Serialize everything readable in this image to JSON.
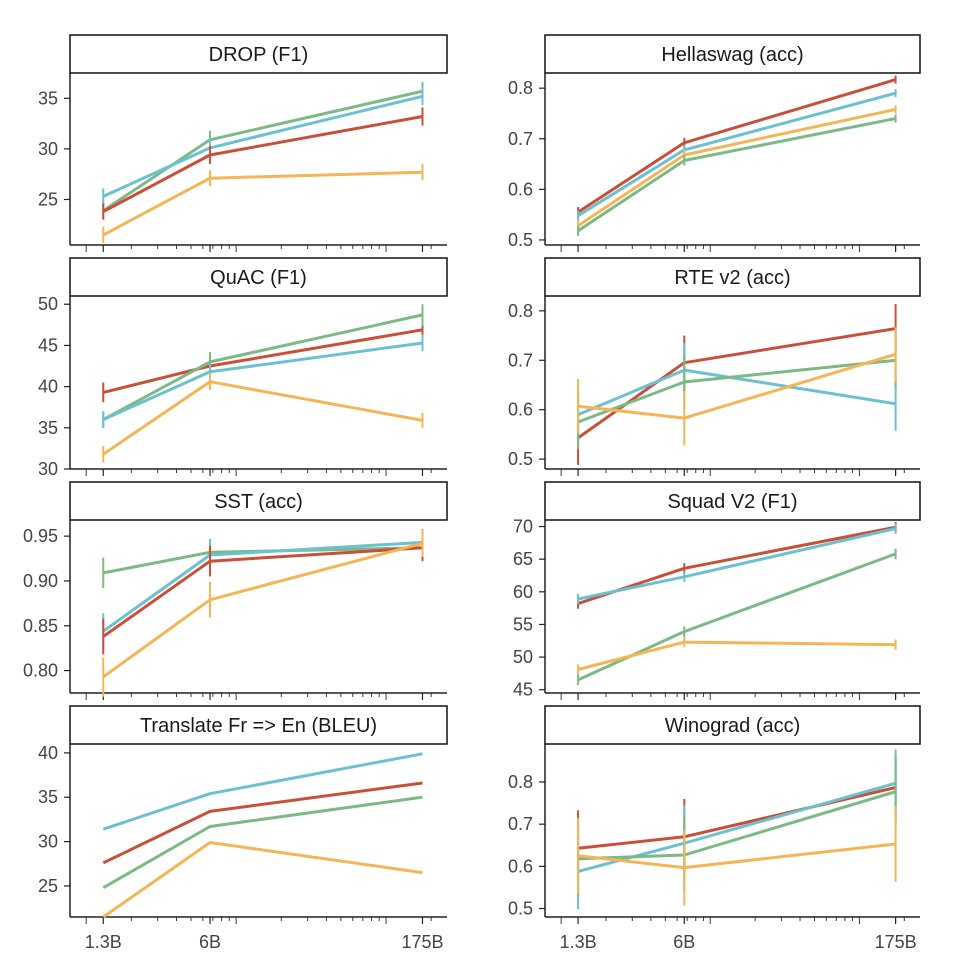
{
  "colors": {
    "red": "#c8503a",
    "teal": "#6cc0d0",
    "green": "#7bba84",
    "orange": "#f4b557"
  },
  "x_tick_labels": [
    "1.3B",
    "6B",
    "175B"
  ],
  "chart_data": [
    {
      "type": "line",
      "title": "DROP (F1)",
      "x": [
        "1.3B",
        "6B",
        "175B"
      ],
      "ylim": [
        20.5,
        37.5
      ],
      "yticks": [
        25,
        30,
        35
      ],
      "error_bars": true,
      "series": [
        {
          "color": "green",
          "values": [
            23.9,
            30.9,
            35.7
          ],
          "err": [
            0.8,
            0.9,
            0.9
          ]
        },
        {
          "color": "teal",
          "values": [
            25.3,
            30.1,
            35.2
          ],
          "err": [
            0.8,
            0.9,
            0.9
          ]
        },
        {
          "color": "red",
          "values": [
            23.8,
            29.4,
            33.2
          ],
          "err": [
            0.8,
            0.9,
            0.9
          ]
        },
        {
          "color": "orange",
          "values": [
            21.5,
            27.1,
            27.7
          ],
          "err": [
            0.8,
            0.8,
            0.8
          ]
        }
      ]
    },
    {
      "type": "line",
      "title": "Hellaswag (acc)",
      "x": [
        "1.3B",
        "6B",
        "175B"
      ],
      "ylim": [
        0.49,
        0.83
      ],
      "yticks": [
        0.5,
        0.6,
        0.7,
        0.8
      ],
      "error_bars": true,
      "series": [
        {
          "color": "red",
          "values": [
            0.555,
            0.692,
            0.817
          ],
          "err": [
            0.01,
            0.01,
            0.008
          ]
        },
        {
          "color": "teal",
          "values": [
            0.548,
            0.678,
            0.79
          ],
          "err": [
            0.01,
            0.01,
            0.008
          ]
        },
        {
          "color": "orange",
          "values": [
            0.528,
            0.668,
            0.758
          ],
          "err": [
            0.01,
            0.01,
            0.008
          ]
        },
        {
          "color": "green",
          "values": [
            0.518,
            0.657,
            0.74
          ],
          "err": [
            0.01,
            0.01,
            0.008
          ]
        }
      ]
    },
    {
      "type": "line",
      "title": "QuAC (F1)",
      "x": [
        "1.3B",
        "6B",
        "175B"
      ],
      "ylim": [
        30,
        51
      ],
      "yticks": [
        30,
        35,
        40,
        45,
        50
      ],
      "error_bars": true,
      "series": [
        {
          "color": "red",
          "values": [
            39.3,
            42.5,
            46.9
          ],
          "err": [
            1.2,
            1.0,
            1.0
          ]
        },
        {
          "color": "green",
          "values": [
            36.0,
            43.0,
            48.7
          ],
          "err": [
            1.0,
            1.2,
            1.3
          ]
        },
        {
          "color": "teal",
          "values": [
            36.0,
            41.8,
            45.3
          ],
          "err": [
            1.0,
            1.0,
            1.0
          ]
        },
        {
          "color": "orange",
          "values": [
            31.8,
            40.6,
            35.9
          ],
          "err": [
            1.0,
            1.0,
            0.9
          ]
        }
      ]
    },
    {
      "type": "line",
      "title": "RTE v2 (acc)",
      "x": [
        "1.3B",
        "6B",
        "175B"
      ],
      "ylim": [
        0.48,
        0.83
      ],
      "yticks": [
        0.5,
        0.6,
        0.7,
        0.8
      ],
      "error_bars": true,
      "series": [
        {
          "color": "red",
          "values": [
            0.543,
            0.695,
            0.764
          ],
          "err": [
            0.055,
            0.055,
            0.05
          ]
        },
        {
          "color": "teal",
          "values": [
            0.59,
            0.68,
            0.612
          ],
          "err": [
            0.055,
            0.055,
            0.055
          ]
        },
        {
          "color": "green",
          "values": [
            0.575,
            0.656,
            0.7
          ],
          "err": [
            0.055,
            0.055,
            0.055
          ]
        },
        {
          "color": "orange",
          "values": [
            0.607,
            0.583,
            0.712
          ],
          "err": [
            0.055,
            0.055,
            0.055
          ]
        }
      ]
    },
    {
      "type": "line",
      "title": "SST (acc)",
      "x": [
        "1.3B",
        "6B",
        "175B"
      ],
      "ylim": [
        0.775,
        0.968
      ],
      "yticks": [
        0.8,
        0.85,
        0.9,
        0.95
      ],
      "yticklabels": [
        "0.80",
        "0.85",
        "0.90",
        "0.95"
      ],
      "error_bars": true,
      "series": [
        {
          "color": "green",
          "values": [
            0.909,
            0.932,
            0.937
          ],
          "err": [
            0.017,
            0.015,
            0.013
          ]
        },
        {
          "color": "teal",
          "values": [
            0.844,
            0.929,
            0.943
          ],
          "err": [
            0.02,
            0.017,
            0.015
          ]
        },
        {
          "color": "red",
          "values": [
            0.838,
            0.922,
            0.937
          ],
          "err": [
            0.02,
            0.017,
            0.015
          ]
        },
        {
          "color": "orange",
          "values": [
            0.793,
            0.879,
            0.942
          ],
          "err": [
            0.022,
            0.02,
            0.015
          ]
        }
      ]
    },
    {
      "type": "line",
      "title": "Squad V2 (F1)",
      "x": [
        "1.3B",
        "6B",
        "175B"
      ],
      "ylim": [
        44.5,
        71
      ],
      "yticks": [
        45,
        50,
        55,
        60,
        65,
        70
      ],
      "error_bars": true,
      "series": [
        {
          "color": "red",
          "values": [
            58.2,
            63.6,
            69.9
          ],
          "err": [
            0.8,
            0.8,
            0.8
          ]
        },
        {
          "color": "teal",
          "values": [
            58.9,
            62.3,
            69.7
          ],
          "err": [
            0.8,
            0.8,
            0.8
          ]
        },
        {
          "color": "green",
          "values": [
            46.5,
            53.9,
            65.8
          ],
          "err": [
            0.8,
            0.8,
            0.8
          ]
        },
        {
          "color": "orange",
          "values": [
            48.1,
            52.3,
            51.9
          ],
          "err": [
            0.8,
            0.8,
            0.8
          ]
        }
      ]
    },
    {
      "type": "line",
      "title": "Translate Fr => En (BLEU)",
      "x": [
        "1.3B",
        "6B",
        "175B"
      ],
      "ylim": [
        21.5,
        41
      ],
      "yticks": [
        25,
        30,
        35,
        40
      ],
      "error_bars": false,
      "series": [
        {
          "color": "teal",
          "values": [
            31.4,
            35.4,
            39.9
          ]
        },
        {
          "color": "red",
          "values": [
            27.6,
            33.4,
            36.6
          ]
        },
        {
          "color": "green",
          "values": [
            24.8,
            31.7,
            35.0
          ]
        },
        {
          "color": "orange",
          "values": [
            21.5,
            29.9,
            26.5
          ]
        }
      ]
    },
    {
      "type": "line",
      "title": "Winograd (acc)",
      "x": [
        "1.3B",
        "6B",
        "175B"
      ],
      "ylim": [
        0.48,
        0.89
      ],
      "yticks": [
        0.5,
        0.6,
        0.7,
        0.8
      ],
      "error_bars": true,
      "series": [
        {
          "color": "red",
          "values": [
            0.643,
            0.67,
            0.787
          ],
          "err": [
            0.09,
            0.09,
            0.08
          ]
        },
        {
          "color": "teal",
          "values": [
            0.588,
            0.655,
            0.797
          ],
          "err": [
            0.09,
            0.09,
            0.08
          ]
        },
        {
          "color": "green",
          "values": [
            0.618,
            0.627,
            0.777
          ],
          "err": [
            0.09,
            0.09,
            0.08
          ]
        },
        {
          "color": "orange",
          "values": [
            0.625,
            0.597,
            0.653
          ],
          "err": [
            0.09,
            0.09,
            0.09
          ]
        }
      ]
    }
  ]
}
